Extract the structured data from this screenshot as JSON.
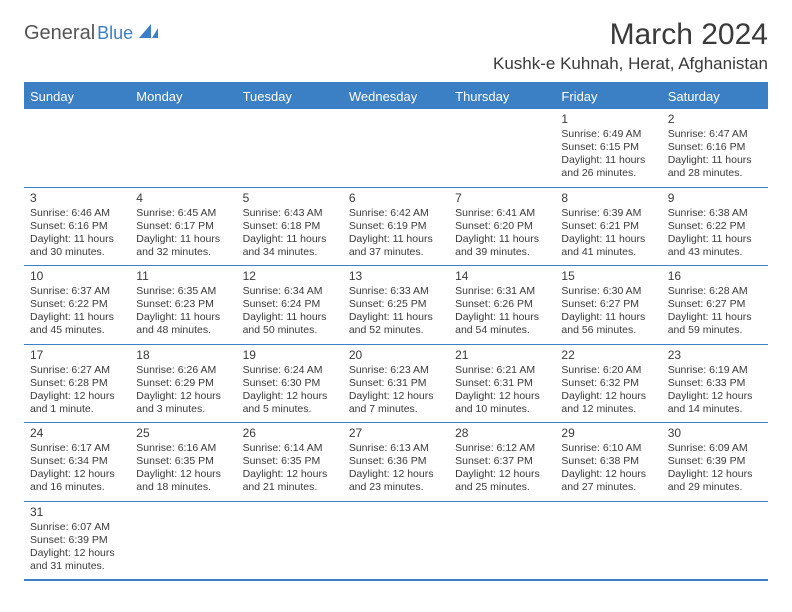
{
  "logo": {
    "text_main": "General",
    "text_sub": "Blue",
    "icon_color": "#3b7fc4"
  },
  "title": "March 2024",
  "subtitle": "Kushk-e Kuhnah, Herat, Afghanistan",
  "colors": {
    "header_bg": "#3b7fc4",
    "header_text": "#ffffff",
    "border": "#3b7fc4",
    "text": "#3a3a3a",
    "background": "#ffffff"
  },
  "day_headers": [
    "Sunday",
    "Monday",
    "Tuesday",
    "Wednesday",
    "Thursday",
    "Friday",
    "Saturday"
  ],
  "weeks": [
    [
      null,
      null,
      null,
      null,
      null,
      {
        "day": "1",
        "sunrise": "Sunrise: 6:49 AM",
        "sunset": "Sunset: 6:15 PM",
        "daylight": "Daylight: 11 hours and 26 minutes."
      },
      {
        "day": "2",
        "sunrise": "Sunrise: 6:47 AM",
        "sunset": "Sunset: 6:16 PM",
        "daylight": "Daylight: 11 hours and 28 minutes."
      }
    ],
    [
      {
        "day": "3",
        "sunrise": "Sunrise: 6:46 AM",
        "sunset": "Sunset: 6:16 PM",
        "daylight": "Daylight: 11 hours and 30 minutes."
      },
      {
        "day": "4",
        "sunrise": "Sunrise: 6:45 AM",
        "sunset": "Sunset: 6:17 PM",
        "daylight": "Daylight: 11 hours and 32 minutes."
      },
      {
        "day": "5",
        "sunrise": "Sunrise: 6:43 AM",
        "sunset": "Sunset: 6:18 PM",
        "daylight": "Daylight: 11 hours and 34 minutes."
      },
      {
        "day": "6",
        "sunrise": "Sunrise: 6:42 AM",
        "sunset": "Sunset: 6:19 PM",
        "daylight": "Daylight: 11 hours and 37 minutes."
      },
      {
        "day": "7",
        "sunrise": "Sunrise: 6:41 AM",
        "sunset": "Sunset: 6:20 PM",
        "daylight": "Daylight: 11 hours and 39 minutes."
      },
      {
        "day": "8",
        "sunrise": "Sunrise: 6:39 AM",
        "sunset": "Sunset: 6:21 PM",
        "daylight": "Daylight: 11 hours and 41 minutes."
      },
      {
        "day": "9",
        "sunrise": "Sunrise: 6:38 AM",
        "sunset": "Sunset: 6:22 PM",
        "daylight": "Daylight: 11 hours and 43 minutes."
      }
    ],
    [
      {
        "day": "10",
        "sunrise": "Sunrise: 6:37 AM",
        "sunset": "Sunset: 6:22 PM",
        "daylight": "Daylight: 11 hours and 45 minutes."
      },
      {
        "day": "11",
        "sunrise": "Sunrise: 6:35 AM",
        "sunset": "Sunset: 6:23 PM",
        "daylight": "Daylight: 11 hours and 48 minutes."
      },
      {
        "day": "12",
        "sunrise": "Sunrise: 6:34 AM",
        "sunset": "Sunset: 6:24 PM",
        "daylight": "Daylight: 11 hours and 50 minutes."
      },
      {
        "day": "13",
        "sunrise": "Sunrise: 6:33 AM",
        "sunset": "Sunset: 6:25 PM",
        "daylight": "Daylight: 11 hours and 52 minutes."
      },
      {
        "day": "14",
        "sunrise": "Sunrise: 6:31 AM",
        "sunset": "Sunset: 6:26 PM",
        "daylight": "Daylight: 11 hours and 54 minutes."
      },
      {
        "day": "15",
        "sunrise": "Sunrise: 6:30 AM",
        "sunset": "Sunset: 6:27 PM",
        "daylight": "Daylight: 11 hours and 56 minutes."
      },
      {
        "day": "16",
        "sunrise": "Sunrise: 6:28 AM",
        "sunset": "Sunset: 6:27 PM",
        "daylight": "Daylight: 11 hours and 59 minutes."
      }
    ],
    [
      {
        "day": "17",
        "sunrise": "Sunrise: 6:27 AM",
        "sunset": "Sunset: 6:28 PM",
        "daylight": "Daylight: 12 hours and 1 minute."
      },
      {
        "day": "18",
        "sunrise": "Sunrise: 6:26 AM",
        "sunset": "Sunset: 6:29 PM",
        "daylight": "Daylight: 12 hours and 3 minutes."
      },
      {
        "day": "19",
        "sunrise": "Sunrise: 6:24 AM",
        "sunset": "Sunset: 6:30 PM",
        "daylight": "Daylight: 12 hours and 5 minutes."
      },
      {
        "day": "20",
        "sunrise": "Sunrise: 6:23 AM",
        "sunset": "Sunset: 6:31 PM",
        "daylight": "Daylight: 12 hours and 7 minutes."
      },
      {
        "day": "21",
        "sunrise": "Sunrise: 6:21 AM",
        "sunset": "Sunset: 6:31 PM",
        "daylight": "Daylight: 12 hours and 10 minutes."
      },
      {
        "day": "22",
        "sunrise": "Sunrise: 6:20 AM",
        "sunset": "Sunset: 6:32 PM",
        "daylight": "Daylight: 12 hours and 12 minutes."
      },
      {
        "day": "23",
        "sunrise": "Sunrise: 6:19 AM",
        "sunset": "Sunset: 6:33 PM",
        "daylight": "Daylight: 12 hours and 14 minutes."
      }
    ],
    [
      {
        "day": "24",
        "sunrise": "Sunrise: 6:17 AM",
        "sunset": "Sunset: 6:34 PM",
        "daylight": "Daylight: 12 hours and 16 minutes."
      },
      {
        "day": "25",
        "sunrise": "Sunrise: 6:16 AM",
        "sunset": "Sunset: 6:35 PM",
        "daylight": "Daylight: 12 hours and 18 minutes."
      },
      {
        "day": "26",
        "sunrise": "Sunrise: 6:14 AM",
        "sunset": "Sunset: 6:35 PM",
        "daylight": "Daylight: 12 hours and 21 minutes."
      },
      {
        "day": "27",
        "sunrise": "Sunrise: 6:13 AM",
        "sunset": "Sunset: 6:36 PM",
        "daylight": "Daylight: 12 hours and 23 minutes."
      },
      {
        "day": "28",
        "sunrise": "Sunrise: 6:12 AM",
        "sunset": "Sunset: 6:37 PM",
        "daylight": "Daylight: 12 hours and 25 minutes."
      },
      {
        "day": "29",
        "sunrise": "Sunrise: 6:10 AM",
        "sunset": "Sunset: 6:38 PM",
        "daylight": "Daylight: 12 hours and 27 minutes."
      },
      {
        "day": "30",
        "sunrise": "Sunrise: 6:09 AM",
        "sunset": "Sunset: 6:39 PM",
        "daylight": "Daylight: 12 hours and 29 minutes."
      }
    ],
    [
      {
        "day": "31",
        "sunrise": "Sunrise: 6:07 AM",
        "sunset": "Sunset: 6:39 PM",
        "daylight": "Daylight: 12 hours and 31 minutes."
      },
      null,
      null,
      null,
      null,
      null,
      null
    ]
  ]
}
